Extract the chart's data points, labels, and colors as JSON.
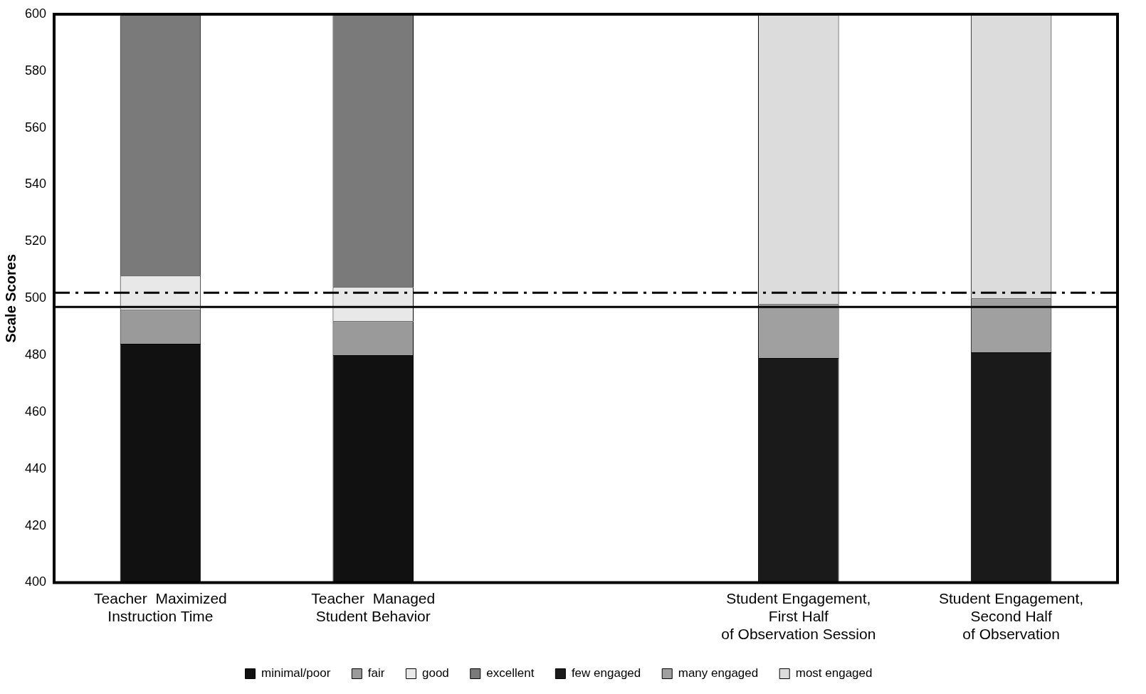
{
  "chart_data": {
    "type": "bar",
    "ylabel": "Scale Scores",
    "categories": [
      "Teacher  Maximized Instruction Time",
      "Teacher  Managed Student Behavior",
      null,
      "Student Engagement, First Half of Observation Session",
      "Student Engagement, Second Half of Observation"
    ],
    "series": [
      {
        "name": "minimal/poor",
        "color": "#111111",
        "base": [
          400,
          400,
          null,
          null,
          null
        ],
        "values": [
          84,
          80,
          null,
          null,
          null
        ]
      },
      {
        "name": "fair",
        "color": "#9a9a9a",
        "base": [
          484,
          480,
          null,
          null,
          null
        ],
        "values": [
          12,
          12,
          null,
          null,
          null
        ]
      },
      {
        "name": "good",
        "color": "#e8e8e8",
        "base": [
          496,
          492,
          null,
          null,
          null
        ],
        "values": [
          12,
          12,
          null,
          null,
          null
        ]
      },
      {
        "name": "excellent",
        "color": "#7a7a7a",
        "base": [
          508,
          504,
          null,
          null,
          null
        ],
        "values": [
          92,
          96,
          null,
          null,
          null
        ]
      },
      {
        "name": "few engaged",
        "color": "#1a1a1a",
        "base": [
          null,
          null,
          null,
          400,
          400
        ],
        "values": [
          null,
          null,
          null,
          79,
          81
        ]
      },
      {
        "name": "many engaged",
        "color": "#a0a0a0",
        "base": [
          null,
          null,
          null,
          479,
          481
        ],
        "values": [
          null,
          null,
          null,
          19,
          19
        ]
      },
      {
        "name": "most engaged",
        "color": "#dcdcdc",
        "base": [
          null,
          null,
          null,
          498,
          500
        ],
        "values": [
          null,
          null,
          null,
          102,
          100
        ]
      }
    ],
    "ylim": [
      400,
      600
    ],
    "yticks": [
      400,
      420,
      440,
      460,
      480,
      500,
      520,
      540,
      560,
      580,
      600
    ],
    "ref_lines": [
      {
        "axis": "y",
        "value": 497,
        "line_style": "solid",
        "color": "#000000"
      },
      {
        "axis": "y",
        "value": 502,
        "line_style": "dashed",
        "color": "#000000"
      }
    ],
    "grid": false,
    "legend": "bottom"
  }
}
